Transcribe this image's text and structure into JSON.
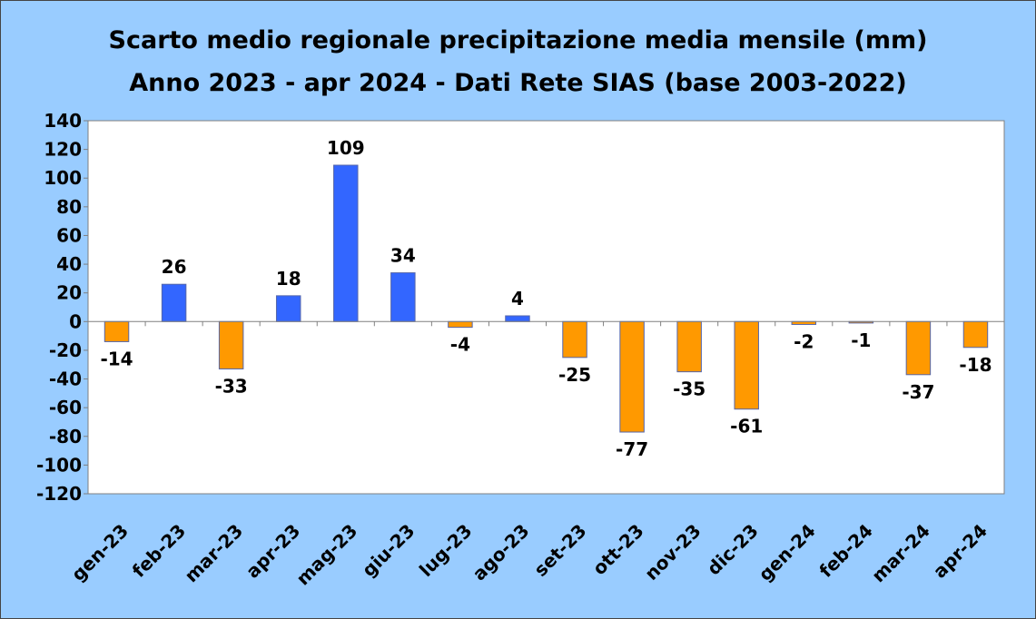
{
  "chart_data": {
    "type": "bar",
    "title": "Scarto medio regionale precipitazione media mensile (mm)",
    "subtitle": "Anno 2023 -  apr 2024 - Dati Rete SIAS (base 2003-2022)",
    "categories": [
      "gen-23",
      "feb-23",
      "mar-23",
      "apr-23",
      "mag-23",
      "giu-23",
      "lug-23",
      "ago-23",
      "set-23",
      "ott-23",
      "nov-23",
      "dic-23",
      "gen-24",
      "feb-24",
      "mar-24",
      "apr-24"
    ],
    "values": [
      -14,
      26,
      -33,
      18,
      109,
      34,
      -4,
      4,
      -25,
      -77,
      -35,
      -61,
      -2,
      -1,
      -37,
      -18
    ],
    "ylim": [
      -120,
      140
    ],
    "yticks": [
      140,
      120,
      100,
      80,
      60,
      40,
      20,
      0,
      -20,
      -40,
      -60,
      -80,
      -100,
      -120
    ],
    "colors": {
      "positive": "#3366ff",
      "negative": "#ff9900",
      "plot_background": "#ffffff",
      "frame_background": "#99ccff"
    },
    "grid": false,
    "legend": "none"
  }
}
